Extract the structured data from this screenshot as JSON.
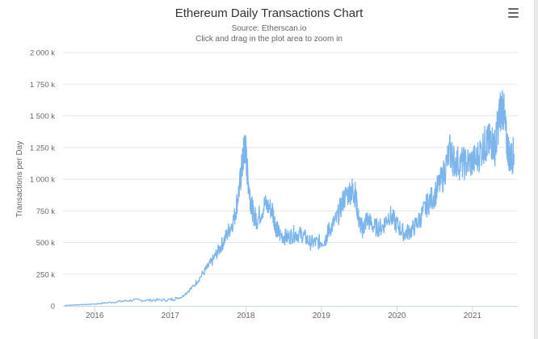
{
  "colors": {
    "line": "#7cb5ec",
    "grid": "#e6e6e6",
    "axis_text": "#666666",
    "title": "#333333"
  },
  "header": {
    "menu_icon": "hamburger-menu-icon"
  },
  "chart_data": {
    "type": "line",
    "title": "Ethereum Daily Transactions Chart",
    "subtitle": "Source: Etherscan.io",
    "subtitle2": "Click and drag in the plot area to zoom in",
    "ylabel": "Transactions per Day",
    "xlabel": "",
    "xlim": [
      2015.58,
      2021.6
    ],
    "ylim": [
      0,
      2000000
    ],
    "grid": true,
    "legend": "none",
    "yticks": [
      0,
      250000,
      500000,
      750000,
      1000000,
      1250000,
      1500000,
      1750000,
      2000000
    ],
    "ytick_labels": [
      "0",
      "250 k",
      "500 k",
      "750 k",
      "1 000 k",
      "1 250 k",
      "1 500 k",
      "1 750 k",
      "2 000 k"
    ],
    "xticks": [
      2016,
      2017,
      2018,
      2019,
      2020,
      2021
    ],
    "xtick_labels": [
      "2016",
      "2017",
      "2018",
      "2019",
      "2020",
      "2021"
    ],
    "series": [
      {
        "values_x": [
          2015.6,
          2015.75,
          2016.0,
          2016.25,
          2016.5,
          2016.75,
          2017.0,
          2017.15,
          2017.3,
          2017.45,
          2017.55,
          2017.65,
          2017.75,
          2017.85,
          2017.92,
          2017.96,
          2017.99,
          2018.02,
          2018.06,
          2018.1,
          2018.15,
          2018.25,
          2018.35,
          2018.4,
          2018.45,
          2018.55,
          2018.65,
          2018.75,
          2018.85,
          2018.95,
          2019.05,
          2019.1,
          2019.2,
          2019.3,
          2019.4,
          2019.45,
          2019.5,
          2019.55,
          2019.6,
          2019.7,
          2019.8,
          2019.9,
          2020.0,
          2020.1,
          2020.2,
          2020.3,
          2020.4,
          2020.5,
          2020.6,
          2020.7,
          2020.75,
          2020.85,
          2020.95,
          2021.05,
          2021.15,
          2021.2,
          2021.25,
          2021.3,
          2021.35,
          2021.4,
          2021.45,
          2021.5,
          2021.55
        ],
        "values_y": [
          3000,
          8000,
          15000,
          30000,
          45000,
          45000,
          48000,
          70000,
          150000,
          270000,
          350000,
          450000,
          560000,
          700000,
          950000,
          1150000,
          1280000,
          1050000,
          850000,
          720000,
          680000,
          800000,
          760000,
          620000,
          560000,
          540000,
          570000,
          560000,
          500000,
          500000,
          520000,
          600000,
          680000,
          850000,
          920000,
          880000,
          660000,
          600000,
          690000,
          620000,
          620000,
          720000,
          640000,
          570000,
          600000,
          680000,
          800000,
          880000,
          1000000,
          1220000,
          1150000,
          1120000,
          1130000,
          1150000,
          1270000,
          1280000,
          1300000,
          1250000,
          1480000,
          1600000,
          1300000,
          1160000,
          1200000
        ]
      }
    ]
  }
}
